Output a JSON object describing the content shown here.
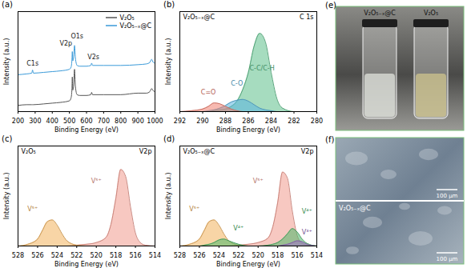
{
  "chart_data": [
    {
      "label": "(a)",
      "type": "line",
      "xlabel": "Binding Energy (eV)",
      "ylabel": "Intensity (a.u.)",
      "x": [
        200,
        250,
        280,
        285,
        290,
        350,
        400,
        450,
        500,
        510,
        515,
        517,
        520,
        525,
        530,
        535,
        545,
        560,
        600,
        625,
        630,
        635,
        700,
        800,
        900,
        950,
        970,
        980,
        990,
        1000
      ],
      "xlim": [
        200,
        1000
      ],
      "xticks": [
        200,
        300,
        400,
        500,
        600,
        700,
        800,
        900,
        1000
      ],
      "ylim": [
        0,
        130
      ],
      "tick_labels": "x",
      "legend": "top-right",
      "series": [
        {
          "name": "V₂O₅",
          "color": "#555555",
          "values": [
            8,
            9,
            9,
            9,
            9,
            10,
            11,
            12,
            14,
            18,
            30,
            45,
            28,
            35,
            55,
            33,
            22,
            21,
            21,
            22,
            25,
            22,
            22,
            22,
            24,
            24,
            26,
            30,
            27,
            26
          ]
        },
        {
          "name": "V₂O₅₋ₓ@C",
          "color": "#3a9ad9",
          "values": [
            48,
            49,
            50,
            54,
            50,
            51,
            52,
            53,
            55,
            58,
            68,
            78,
            66,
            72,
            86,
            70,
            60,
            59,
            59,
            60,
            63,
            60,
            60,
            60,
            61,
            62,
            64,
            68,
            64,
            63
          ]
        }
      ],
      "annotations": [
        {
          "text": "C1s",
          "x": 285,
          "y": 62
        },
        {
          "text": "V2p",
          "x": 480,
          "y": 88
        },
        {
          "text": "O1s",
          "x": 545,
          "y": 98
        },
        {
          "text": "V2s",
          "x": 640,
          "y": 71
        }
      ]
    },
    {
      "label": "(b)",
      "type": "area",
      "title": "V₂O₅₋ₓ@C",
      "subtitle": "C 1s",
      "xlabel": "Binding Energy (eV)",
      "ylabel": "Intensity (a.u.)",
      "x": [
        292,
        291,
        290,
        289.5,
        289,
        288.5,
        288,
        287.5,
        287,
        286.5,
        286,
        285.5,
        285,
        284.5,
        284,
        283.5,
        283,
        282,
        281,
        280
      ],
      "xlim": [
        292,
        280
      ],
      "xticks": [
        292,
        290,
        288,
        286,
        284,
        282,
        280
      ],
      "ylim": [
        0,
        115
      ],
      "tick_labels": "x",
      "series": [
        {
          "name": "C-C/C-H",
          "color": "#5cc08a",
          "label_x": 284.8,
          "label_y": 50,
          "values": [
            0,
            0,
            0,
            0,
            1,
            2,
            3,
            6,
            12,
            25,
            45,
            75,
            90,
            80,
            45,
            15,
            4,
            0,
            0,
            0
          ]
        },
        {
          "name": "C-O",
          "color": "#5ab4e0",
          "label_x": 287,
          "label_y": 32,
          "values": [
            0,
            0,
            0,
            1,
            2,
            4,
            7,
            11,
            13,
            14,
            12,
            8,
            4,
            2,
            1,
            0,
            0,
            0,
            0,
            0
          ]
        },
        {
          "name": "C=O",
          "color": "#f08070",
          "label_x": 289.5,
          "label_y": 22,
          "values": [
            0,
            1,
            3,
            6,
            10,
            9,
            6,
            3,
            1,
            0,
            0,
            0,
            0,
            0,
            0,
            0,
            0,
            0,
            0,
            0
          ]
        }
      ]
    },
    {
      "label": "(c)",
      "type": "area",
      "title": "V₂O₅",
      "subtitle": "V2p",
      "xlabel": "Binding Energy (eV)",
      "ylabel": "Intensity (a.u.)",
      "x": [
        528,
        527,
        526,
        525.5,
        525,
        524.5,
        524,
        523.5,
        523,
        522,
        521,
        520,
        519,
        518.5,
        518,
        517.5,
        517,
        516.5,
        516,
        515.5,
        515,
        514
      ],
      "xlim": [
        528,
        514
      ],
      "xticks": [
        528,
        526,
        524,
        522,
        520,
        518,
        516,
        514
      ],
      "ylim": [
        0,
        115
      ],
      "tick_labels": "x",
      "series": [
        {
          "name": "V⁵⁺",
          "color": "#f19a8e",
          "label_x": 520,
          "label_y": 75,
          "values": [
            0,
            0,
            0,
            0,
            0,
            0,
            0,
            0,
            0,
            1,
            2,
            4,
            10,
            25,
            55,
            88,
            80,
            45,
            15,
            4,
            1,
            0
          ]
        },
        {
          "name": "V⁵⁺",
          "color": "#f2b25c",
          "label_x": 526.5,
          "label_y": 42,
          "values": [
            0,
            2,
            8,
            18,
            28,
            30,
            24,
            14,
            6,
            1,
            0,
            0,
            0,
            0,
            0,
            0,
            0,
            0,
            0,
            0,
            0,
            0
          ]
        }
      ]
    },
    {
      "label": "(d)",
      "type": "area",
      "title": "V₂O₅₋ₓ@C",
      "subtitle": "V2p",
      "xlabel": "Binding Energy (eV)",
      "ylabel": "Intensity (a.u.)",
      "x": [
        528,
        527,
        526,
        525.5,
        525,
        524.5,
        524,
        523.5,
        523,
        522,
        521,
        520,
        519,
        518.5,
        518,
        517.5,
        517,
        516.5,
        516,
        515.5,
        515,
        514
      ],
      "xlim": [
        528,
        514
      ],
      "xticks": [
        528,
        526,
        524,
        522,
        520,
        518,
        516,
        514
      ],
      "ylim": [
        0,
        115
      ],
      "tick_labels": "x",
      "series": [
        {
          "name": "V⁵⁺",
          "color": "#f19a8e",
          "label_x": 520,
          "label_y": 75,
          "values": [
            0,
            0,
            0,
            0,
            0,
            0,
            0,
            0,
            0,
            1,
            2,
            4,
            9,
            22,
            50,
            85,
            78,
            40,
            12,
            3,
            1,
            0
          ]
        },
        {
          "name": "V⁴⁺",
          "color": "#4cb86a",
          "label_x": 515,
          "label_y": 40,
          "values": [
            0,
            0,
            0,
            0,
            0,
            0,
            0,
            0,
            0,
            0,
            0,
            0,
            1,
            2,
            4,
            8,
            14,
            20,
            16,
            8,
            3,
            0
          ]
        },
        {
          "name": "V³⁺",
          "color": "#9b6fc4",
          "label_x": 515,
          "label_y": 16,
          "values": [
            0,
            0,
            0,
            0,
            0,
            0,
            0,
            0,
            0,
            0,
            0,
            0,
            0,
            0,
            0,
            1,
            2,
            4,
            6,
            5,
            2,
            0
          ]
        },
        {
          "name": "V⁵⁺",
          "color": "#f2b25c",
          "label_x": 526.5,
          "label_y": 42,
          "values": [
            0,
            2,
            8,
            18,
            28,
            30,
            24,
            14,
            6,
            1,
            0,
            0,
            0,
            0,
            0,
            0,
            0,
            0,
            0,
            0,
            0,
            0
          ]
        },
        {
          "name": "V⁴⁺",
          "color": "#4cb86a",
          "label_x": 522,
          "label_y": 20,
          "values": [
            0,
            0,
            0,
            1,
            2,
            4,
            7,
            8,
            6,
            2,
            0,
            0,
            0,
            0,
            0,
            0,
            0,
            0,
            0,
            0,
            0,
            0
          ]
        }
      ]
    }
  ],
  "images": [
    {
      "label": "(e)",
      "parts": [
        {
          "texts": [
            "V₂O₅₋ₓ@C",
            "V₂O₅"
          ]
        }
      ]
    },
    {
      "label": "(f)",
      "parts": [
        {
          "texts": [
            "100 μm"
          ]
        },
        {
          "texts": [
            "V₂O₅₋ₓ@C",
            "100 μm"
          ]
        }
      ]
    }
  ]
}
